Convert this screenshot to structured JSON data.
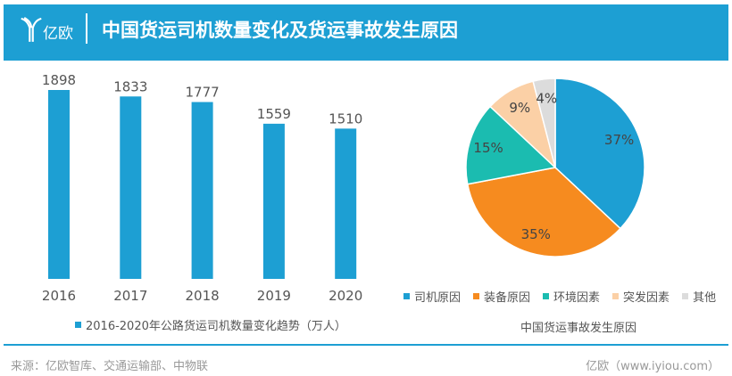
{
  "header": {
    "logo_text": "亿欧",
    "title": "中国货运司机数量变化及货运事故发生原因"
  },
  "footer": {
    "source": "来源：亿欧智库、交通运输部、中物联",
    "site": "亿欧（www.iyiou.com）"
  },
  "colors": {
    "header": "#1d9fd3",
    "bar": "#1d9fd3"
  },
  "chart_data": [
    {
      "type": "bar",
      "categories": [
        "2016",
        "2017",
        "2018",
        "2019",
        "2020"
      ],
      "values": [
        1898,
        1833,
        1777,
        1559,
        1510
      ],
      "legend": "2016-2020年公路货运司机数量变化趋势（万人）",
      "ylim": [
        0,
        1898
      ],
      "grid": false
    },
    {
      "type": "pie",
      "title": "中国货运事故发生原因",
      "slices": [
        {
          "name": "司机原因",
          "value": 37,
          "label": "37%",
          "color": "#1d9fd3"
        },
        {
          "name": "装备原因",
          "value": 35,
          "label": "35%",
          "color": "#f68b1f"
        },
        {
          "name": "环境因素",
          "value": 15,
          "label": "15%",
          "color": "#1bbcb0"
        },
        {
          "name": "突发因素",
          "value": 9,
          "label": "9%",
          "color": "#fbd0a6"
        },
        {
          "name": "其他",
          "value": 4,
          "label": "4%",
          "color": "#dcdcdc"
        }
      ],
      "legend_placement": "bottom"
    }
  ]
}
